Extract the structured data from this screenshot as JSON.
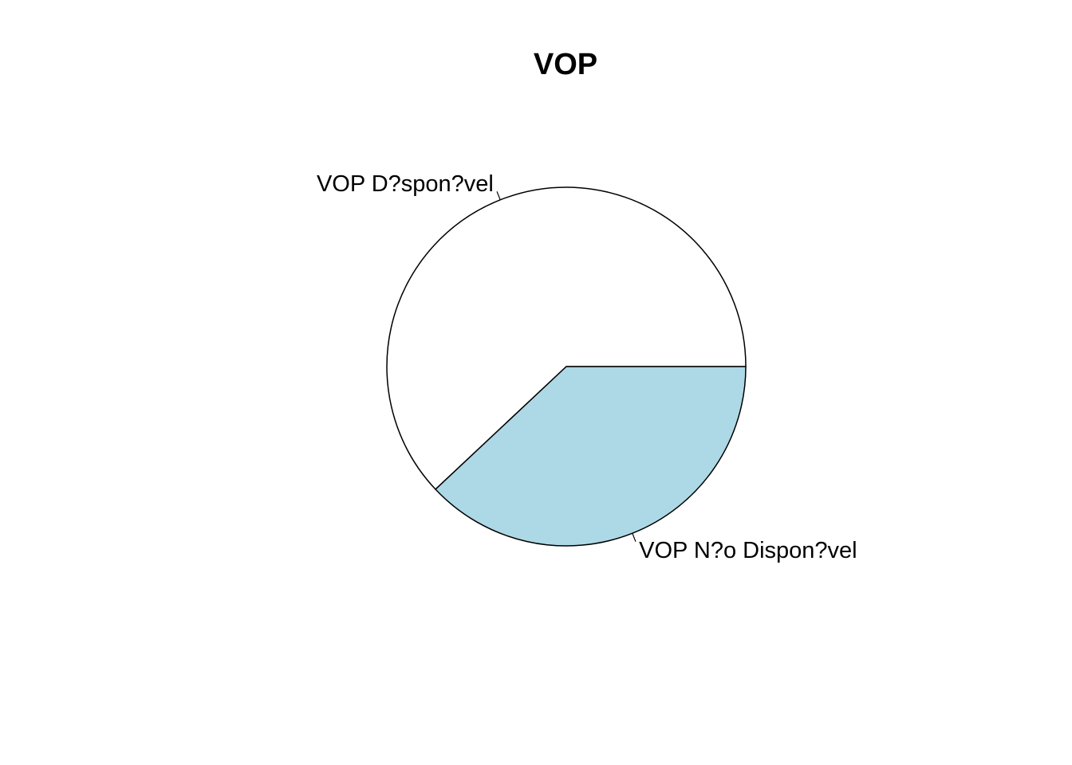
{
  "chart_data": {
    "type": "pie",
    "title": "VOP",
    "slices": [
      {
        "label": "VOP D?spon?vel",
        "value": 62,
        "color": "#ffffff"
      },
      {
        "label": "VOP N?o Dispon?vel",
        "value": 38,
        "color": "#add8e6"
      }
    ],
    "start_angle_deg": 0,
    "direction": "counterclockwise",
    "border_color": "#000000"
  }
}
